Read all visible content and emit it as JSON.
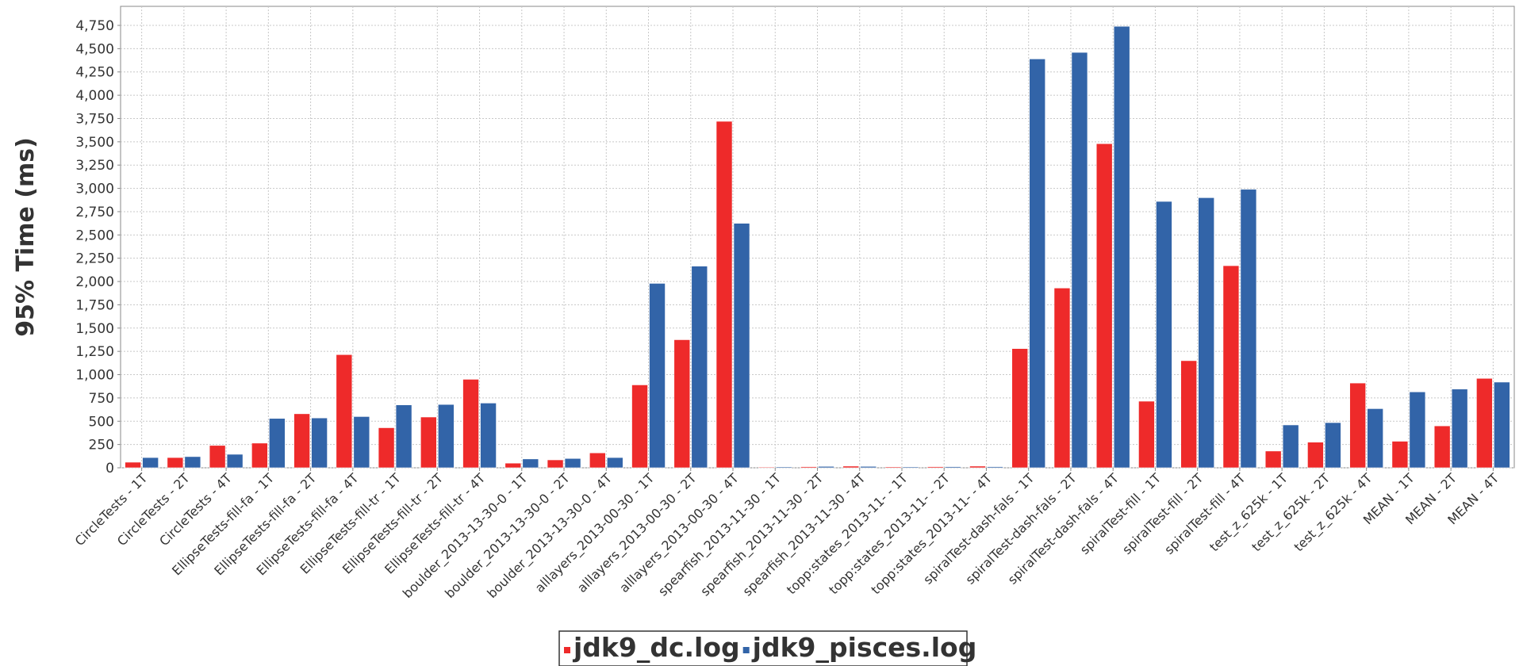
{
  "chart_data": {
    "type": "bar",
    "title": "",
    "xlabel": "",
    "ylabel": "95% Time (ms)",
    "ylim": [
      0,
      5000
    ],
    "yticks": [
      0,
      250,
      500,
      750,
      1000,
      1250,
      1500,
      1750,
      2000,
      2250,
      2500,
      2750,
      3000,
      3250,
      3500,
      3750,
      4000,
      4250,
      4500,
      4750
    ],
    "ytick_labels": [
      "0",
      "250",
      "500",
      "750",
      "1,000",
      "1,250",
      "1,500",
      "1,750",
      "2,000",
      "2,250",
      "2,500",
      "2,750",
      "3,000",
      "3,250",
      "3,500",
      "3,750",
      "4,000",
      "4,250",
      "4,500",
      "4,750"
    ],
    "grid": true,
    "legend_position": "bottom-center",
    "categories": [
      "CircleTests - 1T",
      "CircleTests - 2T",
      "CircleTests - 4T",
      "EllipseTests-fill-fa - 1T",
      "EllipseTests-fill-fa - 2T",
      "EllipseTests-fill-fa - 4T",
      "EllipseTests-fill-tr - 1T",
      "EllipseTests-fill-tr - 2T",
      "EllipseTests-fill-tr - 4T",
      "boulder_2013-13-30-0 - 1T",
      "boulder_2013-13-30-0 - 2T",
      "boulder_2013-13-30-0 - 4T",
      "alllayers_2013-00-30 - 1T",
      "alllayers_2013-00-30 - 2T",
      "alllayers_2013-00-30 - 4T",
      "spearfish_2013-11-30 - 1T",
      "spearfish_2013-11-30 - 2T",
      "spearfish_2013-11-30 - 4T",
      "topp:states_2013-11- - 1T",
      "topp:states_2013-11- - 2T",
      "topp:states_2013-11- - 4T",
      "spiralTest-dash-fals - 1T",
      "spiralTest-dash-fals - 2T",
      "spiralTest-dash-fals - 4T",
      "spiralTest-fill - 1T",
      "spiralTest-fill - 2T",
      "spiralTest-fill - 4T",
      "test_z_625k - 1T",
      "test_z_625k - 2T",
      "test_z_625k - 4T",
      "MEAN - 1T",
      "MEAN - 2T",
      "MEAN - 4T"
    ],
    "series": [
      {
        "name": "jdk9_dc.log",
        "color": "#ee2a2a",
        "values": [
          60,
          110,
          240,
          265,
          580,
          1215,
          430,
          545,
          950,
          50,
          85,
          160,
          890,
          1375,
          3720,
          8,
          12,
          18,
          10,
          12,
          18,
          1280,
          1930,
          3480,
          715,
          1150,
          2170,
          180,
          275,
          910,
          285,
          450,
          960
        ]
      },
      {
        "name": "jdk9_pisces.log",
        "color": "#3264a8",
        "values": [
          110,
          120,
          145,
          530,
          535,
          550,
          675,
          680,
          695,
          95,
          100,
          110,
          1980,
          2165,
          2625,
          10,
          15,
          15,
          10,
          12,
          12,
          4390,
          4460,
          4740,
          2860,
          2900,
          2990,
          460,
          485,
          635,
          815,
          845,
          920
        ]
      }
    ]
  }
}
